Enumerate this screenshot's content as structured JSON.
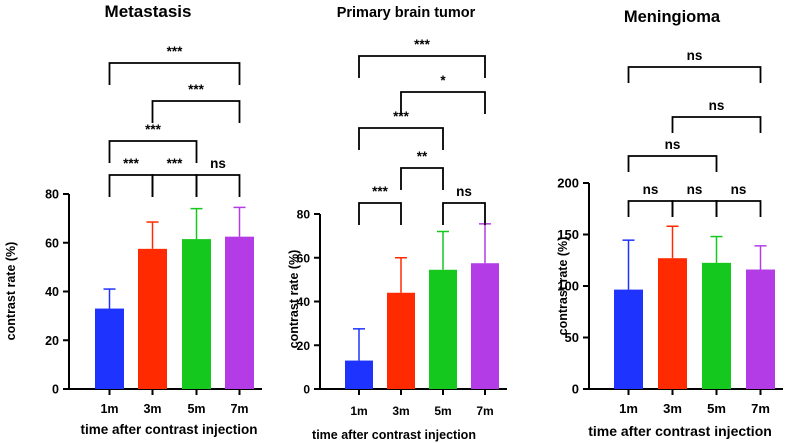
{
  "chart_data": [
    {
      "type": "bar",
      "title": "Metastasis",
      "xlabel": "time after contrast injection",
      "ylabel": "contrast rate (%)",
      "categories": [
        "1m",
        "3m",
        "5m",
        "7m"
      ],
      "values": [
        33,
        57.5,
        61.5,
        62.5
      ],
      "errors": [
        8,
        11,
        12.5,
        12
      ],
      "colors": [
        "#1f33ff",
        "#ff2a00",
        "#14c81e",
        "#b43ce6"
      ],
      "ylim": [
        0,
        80
      ],
      "yticks": [
        "0",
        "20",
        "40",
        "60",
        "80"
      ],
      "yticks_values": [
        0,
        20,
        40,
        60,
        80
      ],
      "significance": [
        {
          "from": 0,
          "to": 1,
          "label": "***"
        },
        {
          "from": 1,
          "to": 2,
          "label": "***"
        },
        {
          "from": 2,
          "to": 3,
          "label": "ns"
        },
        {
          "from": 0,
          "to": 2,
          "label": "***"
        },
        {
          "from": 1,
          "to": 3,
          "label": "***"
        },
        {
          "from": 0,
          "to": 3,
          "label": "***"
        }
      ]
    },
    {
      "type": "bar",
      "title": "Primary brain tumor",
      "xlabel": "time after contrast injection",
      "ylabel": "contrast rate (%)",
      "categories": [
        "1m",
        "3m",
        "5m",
        "7m"
      ],
      "values": [
        13,
        44,
        54.5,
        57.5
      ],
      "errors": [
        14.5,
        16,
        17.5,
        18
      ],
      "colors": [
        "#1f33ff",
        "#ff2a00",
        "#14c81e",
        "#b43ce6"
      ],
      "ylim": [
        0,
        80
      ],
      "yticks": [
        "0",
        "20",
        "40",
        "60",
        "80"
      ],
      "yticks_values": [
        0,
        20,
        40,
        60,
        80
      ],
      "significance": [
        {
          "from": 0,
          "to": 1,
          "label": "***"
        },
        {
          "from": 2,
          "to": 3,
          "label": "ns"
        },
        {
          "from": 1,
          "to": 2,
          "label": "**"
        },
        {
          "from": 0,
          "to": 2,
          "label": "***"
        },
        {
          "from": 1,
          "to": 3,
          "label": "*"
        },
        {
          "from": 0,
          "to": 3,
          "label": "***"
        }
      ]
    },
    {
      "type": "bar",
      "title": "Meningioma",
      "xlabel": "time after contrast injection",
      "ylabel": "contrast rate (%)",
      "categories": [
        "1m",
        "3m",
        "5m",
        "7m"
      ],
      "values": [
        96.5,
        127,
        122.5,
        116
      ],
      "errors": [
        48,
        31,
        25.5,
        23
      ],
      "colors": [
        "#1f33ff",
        "#ff2a00",
        "#14c81e",
        "#b43ce6"
      ],
      "ylim": [
        0,
        200
      ],
      "yticks": [
        "0",
        "50",
        "100",
        "150",
        "200"
      ],
      "yticks_values": [
        0,
        50,
        100,
        150,
        200
      ],
      "significance": [
        {
          "from": 0,
          "to": 1,
          "label": "ns"
        },
        {
          "from": 1,
          "to": 2,
          "label": "ns"
        },
        {
          "from": 2,
          "to": 3,
          "label": "ns"
        },
        {
          "from": 0,
          "to": 2,
          "label": "ns"
        },
        {
          "from": 1,
          "to": 3,
          "label": "ns"
        },
        {
          "from": 0,
          "to": 3,
          "label": "ns"
        }
      ]
    }
  ]
}
